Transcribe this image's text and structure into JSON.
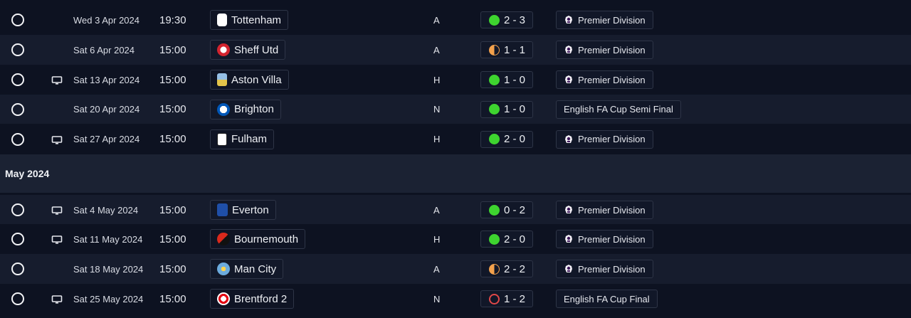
{
  "month_header": "May 2024",
  "colors": {
    "win": "#3ed42f",
    "draw": "#f3a14c",
    "loss": "#e04848"
  },
  "fixtures": [
    {
      "date": "Wed 3 Apr 2024",
      "time": "19:30",
      "team": "Tottenham",
      "venue": "A",
      "score": "2 - 3",
      "result": "win",
      "competition": "Premier Division",
      "tv": false,
      "crest": "tottenham-crest-icon"
    },
    {
      "date": "Sat 6 Apr 2024",
      "time": "15:00",
      "team": "Sheff Utd",
      "venue": "A",
      "score": "1 - 1",
      "result": "draw",
      "competition": "Premier Division",
      "tv": false,
      "crest": "sheffield-crest-icon"
    },
    {
      "date": "Sat 13 Apr 2024",
      "time": "15:00",
      "team": "Aston Villa",
      "venue": "H",
      "score": "1 - 0",
      "result": "win",
      "competition": "Premier Division",
      "tv": true,
      "crest": "aston-villa-crest-icon"
    },
    {
      "date": "Sat 20 Apr 2024",
      "time": "15:00",
      "team": "Brighton",
      "venue": "N",
      "score": "1 - 0",
      "result": "win",
      "competition": "English FA Cup Semi Final",
      "tv": false,
      "crest": "brighton-crest-icon"
    },
    {
      "date": "Sat 27 Apr 2024",
      "time": "15:00",
      "team": "Fulham",
      "venue": "H",
      "score": "2 - 0",
      "result": "win",
      "competition": "Premier Division",
      "tv": true,
      "crest": "fulham-crest-icon"
    },
    {
      "date": "Sat 4 May 2024",
      "time": "15:00",
      "team": "Everton",
      "venue": "A",
      "score": "0 - 2",
      "result": "win",
      "competition": "Premier Division",
      "tv": true,
      "crest": "everton-crest-icon"
    },
    {
      "date": "Sat 11 May 2024",
      "time": "15:00",
      "team": "Bournemouth",
      "venue": "H",
      "score": "2 - 0",
      "result": "win",
      "competition": "Premier Division",
      "tv": true,
      "crest": "bournemouth-crest-icon"
    },
    {
      "date": "Sat 18 May 2024",
      "time": "15:00",
      "team": "Man City",
      "venue": "A",
      "score": "2 - 2",
      "result": "draw",
      "competition": "Premier Division",
      "tv": false,
      "crest": "man-city-crest-icon"
    },
    {
      "date": "Sat 25 May 2024",
      "time": "15:00",
      "team": "Brentford 2",
      "venue": "N",
      "score": "1 - 2",
      "result": "loss",
      "competition": "English FA Cup Final",
      "tv": true,
      "crest": "brentford-crest-icon"
    }
  ]
}
